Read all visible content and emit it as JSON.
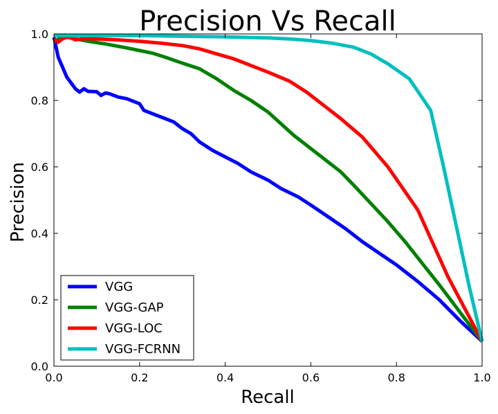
{
  "chart_data": {
    "type": "line",
    "title": "Precision Vs Recall",
    "xlabel": "Recall",
    "ylabel": "Precision",
    "xlim": [
      0.0,
      1.0
    ],
    "ylim": [
      0.0,
      1.0
    ],
    "xticks": [
      "0.0",
      "0.2",
      "0.4",
      "0.6",
      "0.8",
      "1.0"
    ],
    "yticks": [
      "0.0",
      "0.2",
      "0.4",
      "0.6",
      "0.8",
      "1.0"
    ],
    "grid": false,
    "legend_position": "lower-left",
    "series": [
      {
        "name": "VGG",
        "color": "#0000ff",
        "x": [
          0.0,
          0.01,
          0.03,
          0.05,
          0.06,
          0.07,
          0.08,
          0.1,
          0.11,
          0.12,
          0.13,
          0.15,
          0.17,
          0.19,
          0.2,
          0.21,
          0.22,
          0.25,
          0.28,
          0.3,
          0.32,
          0.34,
          0.37,
          0.4,
          0.43,
          0.46,
          0.5,
          0.53,
          0.57,
          0.6,
          0.64,
          0.68,
          0.72,
          0.76,
          0.8,
          0.85,
          0.9,
          0.95,
          1.0
        ],
        "y": [
          0.99,
          0.93,
          0.87,
          0.835,
          0.825,
          0.835,
          0.827,
          0.826,
          0.815,
          0.822,
          0.82,
          0.81,
          0.805,
          0.795,
          0.79,
          0.77,
          0.765,
          0.75,
          0.735,
          0.715,
          0.7,
          0.675,
          0.65,
          0.63,
          0.61,
          0.585,
          0.56,
          0.535,
          0.51,
          0.485,
          0.45,
          0.415,
          0.375,
          0.34,
          0.305,
          0.255,
          0.2,
          0.135,
          0.075
        ]
      },
      {
        "name": "VGG-GAP",
        "color": "#008000",
        "x": [
          0.0,
          0.01,
          0.03,
          0.05,
          0.08,
          0.12,
          0.17,
          0.2,
          0.23,
          0.26,
          0.3,
          0.34,
          0.38,
          0.42,
          0.46,
          0.5,
          0.53,
          0.56,
          0.6,
          0.63,
          0.67,
          0.7,
          0.74,
          0.78,
          0.82,
          0.86,
          0.9,
          0.95,
          1.0
        ],
        "y": [
          0.975,
          0.985,
          0.99,
          0.985,
          0.978,
          0.97,
          0.958,
          0.95,
          0.942,
          0.93,
          0.912,
          0.895,
          0.865,
          0.83,
          0.8,
          0.765,
          0.73,
          0.695,
          0.655,
          0.625,
          0.585,
          0.545,
          0.49,
          0.435,
          0.375,
          0.31,
          0.245,
          0.16,
          0.075
        ]
      },
      {
        "name": "VGG-LOC",
        "color": "#ff0000",
        "x": [
          0.0,
          0.01,
          0.02,
          0.03,
          0.04,
          0.05,
          0.07,
          0.1,
          0.15,
          0.2,
          0.25,
          0.3,
          0.34,
          0.38,
          0.42,
          0.46,
          0.5,
          0.55,
          0.59,
          0.63,
          0.67,
          0.72,
          0.78,
          0.85,
          0.92,
          1.0
        ],
        "y": [
          0.985,
          0.975,
          0.985,
          0.99,
          0.988,
          0.982,
          0.986,
          0.985,
          0.982,
          0.978,
          0.972,
          0.965,
          0.955,
          0.94,
          0.925,
          0.905,
          0.885,
          0.858,
          0.825,
          0.785,
          0.745,
          0.69,
          0.6,
          0.47,
          0.27,
          0.075
        ]
      },
      {
        "name": "VGG-FCRNN",
        "color": "#00bfbf",
        "x": [
          0.0,
          0.05,
          0.1,
          0.2,
          0.3,
          0.4,
          0.5,
          0.55,
          0.6,
          0.65,
          0.7,
          0.74,
          0.78,
          0.83,
          0.88,
          0.91,
          0.94,
          0.97,
          1.0
        ],
        "y": [
          0.995,
          0.995,
          0.995,
          0.995,
          0.993,
          0.991,
          0.988,
          0.985,
          0.98,
          0.972,
          0.96,
          0.94,
          0.91,
          0.865,
          0.77,
          0.6,
          0.42,
          0.24,
          0.075
        ]
      }
    ]
  }
}
